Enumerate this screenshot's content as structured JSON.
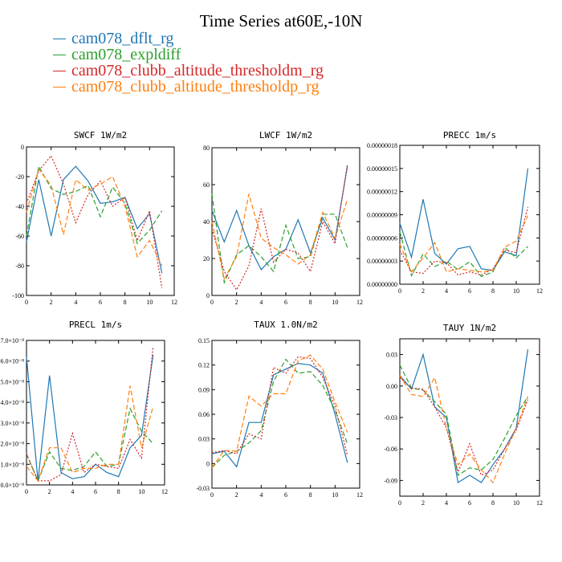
{
  "title": "Time Series at60E,-10N",
  "legend": [
    {
      "label": "cam078_dflt_rg",
      "color": "#1f77b4",
      "dash": ""
    },
    {
      "label": "cam078_expldiff",
      "color": "#2ca02c",
      "dash": "6,3"
    },
    {
      "label": "cam078_clubb_altitude_thresholdm_rg",
      "color": "#d62728",
      "dash": "2,2"
    },
    {
      "label": "cam078_clubb_altitude_thresholdp_rg",
      "color": "#ff7f0e",
      "dash": "6,3"
    }
  ],
  "chart_data": [
    {
      "type": "line",
      "title": "SWCF   1W/m2",
      "x": [
        0,
        1,
        2,
        3,
        4,
        5,
        6,
        7,
        8,
        9,
        10,
        11
      ],
      "xlim": [
        0,
        12
      ],
      "xticks": [
        0,
        2,
        4,
        6,
        8,
        10,
        12
      ],
      "ylim": [
        -100,
        0
      ],
      "yticks": [
        -100,
        -80,
        -60,
        -40,
        -20,
        0
      ],
      "ytick_labels": [
        "-100",
        "-80",
        "-60",
        "-40",
        "-20",
        "0"
      ],
      "series": [
        {
          "name": "cam078_dflt_rg",
          "values": [
            -64,
            -22,
            -60,
            -22,
            -13,
            -23,
            -38,
            -37,
            -34,
            -55,
            -45,
            -85
          ]
        },
        {
          "name": "cam078_expldiff",
          "values": [
            -60,
            -13,
            -28,
            -32,
            -30,
            -26,
            -47,
            -27,
            -38,
            -65,
            -56,
            -43
          ]
        },
        {
          "name": "cam078_clubb_altitude_thresholdm_rg",
          "values": [
            -38,
            -16,
            -6,
            -25,
            -51,
            -32,
            -23,
            -40,
            -34,
            -63,
            -43,
            -95
          ]
        },
        {
          "name": "cam078_clubb_altitude_thresholdp_rg",
          "values": [
            -44,
            -15,
            -26,
            -59,
            -22,
            -29,
            -25,
            -20,
            -40,
            -74,
            -63,
            -80
          ]
        }
      ]
    },
    {
      "type": "line",
      "title": "LWCF   1W/m2",
      "x": [
        0,
        1,
        2,
        3,
        4,
        5,
        6,
        7,
        8,
        9,
        10,
        11
      ],
      "xlim": [
        0,
        12
      ],
      "xticks": [
        0,
        2,
        4,
        6,
        8,
        10,
        12
      ],
      "ylim": [
        0,
        80
      ],
      "yticks": [
        0,
        20,
        40,
        60,
        80
      ],
      "ytick_labels": [
        "0",
        "20",
        "40",
        "60",
        "80"
      ],
      "series": [
        {
          "name": "cam078_dflt_rg",
          "values": [
            46,
            29,
            46,
            27,
            14,
            21,
            25,
            41,
            23,
            42,
            30,
            70
          ]
        },
        {
          "name": "cam078_expldiff",
          "values": [
            55,
            7,
            22,
            27,
            21,
            13,
            38,
            20,
            21,
            44,
            44,
            26
          ]
        },
        {
          "name": "cam078_clubb_altitude_thresholdm_rg",
          "values": [
            36,
            13,
            3,
            16,
            47,
            18,
            25,
            23,
            13,
            40,
            28,
            71
          ]
        },
        {
          "name": "cam078_clubb_altitude_thresholdp_rg",
          "values": [
            40,
            9,
            21,
            55,
            31,
            26,
            22,
            17,
            22,
            45,
            31,
            52
          ]
        }
      ]
    },
    {
      "type": "line",
      "title": "PRECC   1m/s",
      "x": [
        0,
        1,
        2,
        3,
        4,
        5,
        6,
        7,
        8,
        9,
        10,
        11
      ],
      "xlim": [
        0,
        12
      ],
      "xticks": [
        0,
        2,
        4,
        6,
        8,
        10,
        12
      ],
      "ylim": [
        0,
        1.8e-07
      ],
      "yticks": [
        0,
        3e-08,
        6e-08,
        9e-08,
        1.2e-07,
        1.5e-07,
        1.8e-07
      ],
      "ytick_labels": [
        "0.00000000",
        "0.00000003",
        "0.00000006",
        "0.00000009",
        "0.00000012",
        "0.00000015",
        "0.00000018"
      ],
      "y_axis_side": "left",
      "series": [
        {
          "name": "cam078_dflt_rg",
          "values": [
            7.9e-08,
            3.5e-08,
            1.1e-07,
            4e-08,
            2.6e-08,
            4.6e-08,
            4.9e-08,
            2e-08,
            1.8e-08,
            4.2e-08,
            3.7e-08,
            1.5e-07
          ]
        },
        {
          "name": "cam078_expldiff",
          "values": [
            6.8e-08,
            1.1e-08,
            3.9e-08,
            2.3e-08,
            3e-08,
            1.9e-08,
            2.9e-08,
            1e-08,
            1.6e-08,
            4.8e-08,
            3.4e-08,
            4.9e-08
          ]
        },
        {
          "name": "cam078_clubb_altitude_thresholdm_rg",
          "values": [
            4.4e-08,
            1.6e-08,
            1.4e-08,
            3e-08,
            2.8e-08,
            1.2e-08,
            1.6e-08,
            1.2e-08,
            2e-08,
            4.4e-08,
            4.1e-08,
            1e-07
          ]
        },
        {
          "name": "cam078_clubb_altitude_thresholdp_rg",
          "values": [
            5.2e-08,
            1.6e-08,
            3.4e-08,
            5.4e-08,
            1.6e-08,
            2e-08,
            1.8e-08,
            1.6e-08,
            1.8e-08,
            4.8e-08,
            5.6e-08,
            8.9e-08
          ]
        }
      ]
    },
    {
      "type": "line",
      "title": "PRECL   1m/s",
      "x": [
        0,
        1,
        2,
        3,
        4,
        5,
        6,
        7,
        8,
        9,
        10,
        11
      ],
      "xlim": [
        0,
        12
      ],
      "xticks": [
        0,
        2,
        4,
        6,
        8,
        10,
        12
      ],
      "ylim": [
        0,
        7e-08
      ],
      "yticks": [
        0,
        1e-08,
        2e-08,
        3e-08,
        4e-08,
        5e-08,
        6e-08,
        7e-08
      ],
      "ytick_labels": [
        "0.0×10⁻⁸",
        "1.0×10⁻⁸",
        "2.0×10⁻⁸",
        "3.0×10⁻⁸",
        "4.0×10⁻⁸",
        "5.0×10⁻⁸",
        "6.0×10⁻⁸",
        "7.0×10⁻⁸"
      ],
      "series": [
        {
          "name": "cam078_dflt_rg",
          "values": [
            6.2e-08,
            2e-09,
            5.3e-08,
            6e-09,
            3e-09,
            4e-09,
            1e-08,
            6e-09,
            4e-09,
            1.8e-08,
            2.4e-08,
            6.3e-08
          ]
        },
        {
          "name": "cam078_expldiff",
          "values": [
            1.5e-08,
            2e-09,
            1.6e-08,
            8e-09,
            7e-09,
            9e-09,
            1.6e-08,
            9e-09,
            1e-08,
            3.7e-08,
            2.6e-08,
            2e-08
          ]
        },
        {
          "name": "cam078_clubb_altitude_thresholdm_rg",
          "values": [
            1.5e-08,
            2e-09,
            2e-09,
            5e-09,
            2.5e-08,
            6e-09,
            1e-08,
            9e-09,
            8e-09,
            2.2e-08,
            1.3e-08,
            6.7e-08
          ]
        },
        {
          "name": "cam078_clubb_altitude_thresholdp_rg",
          "values": [
            9e-09,
            2e-09,
            1.8e-08,
            1.8e-08,
            6e-09,
            8e-09,
            8e-09,
            1e-08,
            1e-08,
            4.8e-08,
            1.8e-08,
            3.8e-08
          ]
        }
      ]
    },
    {
      "type": "line",
      "title": "TAUX   1.0N/m2",
      "x": [
        0,
        1,
        2,
        3,
        4,
        5,
        6,
        7,
        8,
        9,
        10,
        11
      ],
      "xlim": [
        0,
        12
      ],
      "xticks": [
        0,
        2,
        4,
        6,
        8,
        10,
        12
      ],
      "ylim": [
        -0.03,
        0.15
      ],
      "yticks": [
        -0.03,
        0,
        0.03,
        0.06,
        0.09,
        0.12,
        0.15
      ],
      "ytick_labels": [
        "-0.03",
        "0",
        "0.03",
        "0.06",
        "0.09",
        "0.12",
        "0.15"
      ],
      "series": [
        {
          "name": "cam078_dflt_rg",
          "values": [
            0.012,
            0.015,
            -0.004,
            0.05,
            0.05,
            0.108,
            0.115,
            0.122,
            0.12,
            0.11,
            0.06,
            0.001
          ]
        },
        {
          "name": "cam078_expldiff",
          "values": [
            -0.005,
            0.01,
            0.015,
            0.025,
            0.04,
            0.1,
            0.127,
            0.11,
            0.112,
            0.095,
            0.065,
            0.024
          ]
        },
        {
          "name": "cam078_clubb_altitude_thresholdm_rg",
          "values": [
            0.013,
            0.016,
            0.012,
            0.036,
            0.03,
            0.117,
            0.11,
            0.13,
            0.128,
            0.105,
            0.07,
            0.01
          ]
        },
        {
          "name": "cam078_clubb_altitude_thresholdp_rg",
          "values": [
            -0.005,
            0.016,
            0.015,
            0.082,
            0.07,
            0.085,
            0.085,
            0.125,
            0.132,
            0.115,
            0.075,
            0.038
          ]
        }
      ]
    },
    {
      "type": "line",
      "title": "TAUY   1N/m2",
      "x": [
        0,
        1,
        2,
        3,
        4,
        5,
        6,
        7,
        8,
        9,
        10,
        11
      ],
      "xlim": [
        0,
        12
      ],
      "xticks": [
        0,
        2,
        4,
        6,
        8,
        10,
        12
      ],
      "ylim": [
        -0.105,
        0.045
      ],
      "yticks": [
        -0.09,
        -0.06,
        -0.03,
        0,
        0.03
      ],
      "ytick_labels": [
        "-0.09",
        "-0.06",
        "-0.03",
        "0.00",
        "0.03"
      ],
      "series": [
        {
          "name": "cam078_dflt_rg",
          "values": [
            0.01,
            -0.003,
            0.03,
            -0.02,
            -0.03,
            -0.092,
            -0.085,
            -0.092,
            -0.075,
            -0.06,
            -0.04,
            0.035
          ]
        },
        {
          "name": "cam078_expldiff",
          "values": [
            0.02,
            -0.002,
            -0.004,
            -0.015,
            -0.027,
            -0.085,
            -0.078,
            -0.08,
            -0.07,
            -0.05,
            -0.028,
            -0.01
          ]
        },
        {
          "name": "cam078_clubb_altitude_thresholdm_rg",
          "values": [
            0.008,
            -0.002,
            -0.003,
            -0.02,
            -0.04,
            -0.082,
            -0.055,
            -0.085,
            -0.08,
            -0.06,
            -0.042,
            -0.013
          ]
        },
        {
          "name": "cam078_clubb_altitude_thresholdp_rg",
          "values": [
            0.01,
            -0.008,
            -0.01,
            0.008,
            -0.04,
            -0.075,
            -0.065,
            -0.08,
            -0.092,
            -0.065,
            -0.04,
            -0.01
          ]
        }
      ]
    }
  ]
}
